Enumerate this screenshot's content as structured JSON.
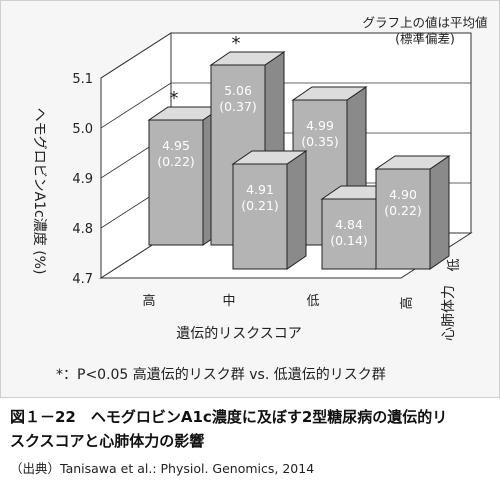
{
  "chart_data": {
    "type": "bar",
    "note": "グラフ上の値は平均値\n(標準偏差)",
    "ylabel": "ヘモグロビンA1c濃度 (%)",
    "ylim": [
      4.7,
      5.1
    ],
    "yticks": [
      "4.7",
      "4.8",
      "4.9",
      "5.0",
      "5.1"
    ],
    "xlabel": "遺伝的リスクスコア",
    "x_categories": [
      "高",
      "中",
      "低"
    ],
    "zlabel": "心肺体力",
    "z_categories": [
      "高",
      "低"
    ],
    "bars": [
      {
        "risk": "高",
        "fitness": "低",
        "value": 4.95,
        "sd": 0.22,
        "label": "4.95",
        "sd_label": "(0.22)",
        "significant": true
      },
      {
        "risk": "中",
        "fitness": "低",
        "value": 5.06,
        "sd": 0.37,
        "label": "5.06",
        "sd_label": "(0.37)",
        "significant": true
      },
      {
        "risk": "低",
        "fitness": "低",
        "value": 4.99,
        "sd": 0.35,
        "label": "4.99",
        "sd_label": "(0.35)",
        "significant": false
      },
      {
        "risk": "中",
        "fitness": "高",
        "value": 4.91,
        "sd": 0.21,
        "label": "4.91",
        "sd_label": "(0.21)",
        "significant": false
      },
      {
        "risk": "低",
        "fitness": "高",
        "value": 4.84,
        "sd": 0.14,
        "label": "4.84",
        "sd_label": "(0.14)",
        "significant": false
      },
      {
        "risk": "高",
        "fitness": "高",
        "value": 4.9,
        "sd": 0.22,
        "label": "4.90",
        "sd_label": "(0.22)",
        "significant": false
      }
    ],
    "significance_marker": "*",
    "footnote": "*：P<0.05 高遺伝的リスク群 vs. 低遺伝的リスク群"
  },
  "caption": {
    "title_line1": "図１－22　ヘモグロビンA1c濃度に及ぼす2型糖尿病の遺伝的リ",
    "title_line2": "スクスコアと心肺体力の影響",
    "source": "（出典）Tanisawa et al.: Physiol. Genomics, 2014"
  }
}
